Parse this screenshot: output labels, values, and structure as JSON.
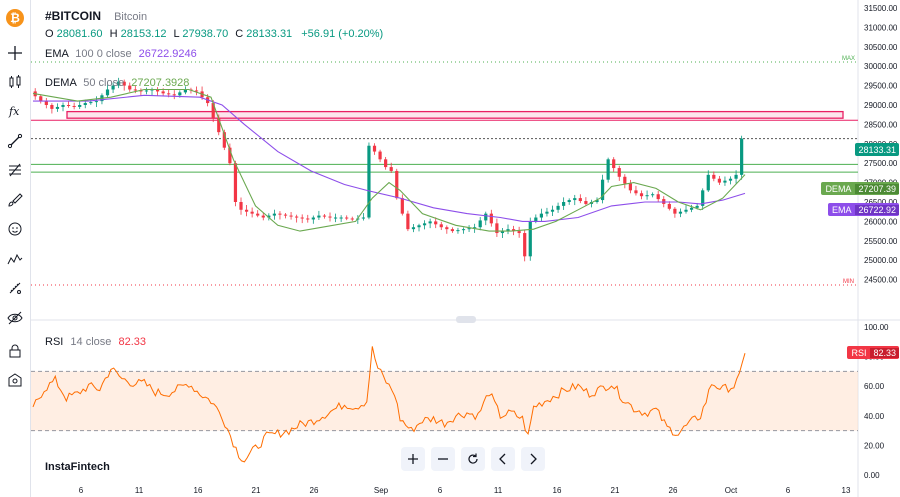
{
  "symbol": "#BITCOIN",
  "symbol_name": "Bitcoin",
  "coin_glyph": "₿",
  "ohlc": {
    "o_label": "O",
    "o": "28081.60",
    "h_label": "H",
    "h": "28153.12",
    "l_label": "L",
    "l": "27938.70",
    "c_label": "C",
    "c": "28133.31",
    "change": "+56.91 (+0.20%)"
  },
  "ema": {
    "name": "EMA",
    "params": "100 0 close",
    "value": "26722.9246",
    "tag": "26722.92",
    "color": "#8d4eea"
  },
  "dema": {
    "name": "DEMA",
    "params": "50 close",
    "value": "27207.3928",
    "tag": "27207.39",
    "color": "#6aa84f"
  },
  "rsi": {
    "name": "RSI",
    "params": "14 close",
    "value": "82.33",
    "tag_label": "RSI",
    "tag": "82.33",
    "color": "#ff6d00"
  },
  "last_price_tag": "28133.31",
  "max_label": "MAX",
  "min_label": "MIN",
  "brand": "InstaFintech",
  "colors": {
    "up": "#089981",
    "down": "#f23645",
    "zone": "#e91e63",
    "hline": "#4caf50",
    "rsi_fill": "#ffe0cc"
  },
  "toolbar_icons": [
    "bitcoin-icon",
    "crosshair-icon",
    "candles-icon",
    "fx-icon",
    "trend-line-icon",
    "fib-icon",
    "brush-icon",
    "emoji-icon",
    "pattern-icon",
    "measure-icon",
    "hide-icon",
    "lock-icon",
    "screenshot-icon"
  ],
  "chart_data": {
    "type": "candlestick",
    "symbol": "#BITCOIN",
    "x_ticks": [
      "6",
      "11",
      "16",
      "21",
      "26",
      "Sep",
      "6",
      "11",
      "16",
      "21",
      "26",
      "Oct",
      "6",
      "13"
    ],
    "y_ticks_main": [
      "31500.00",
      "31000.00",
      "30500.00",
      "30000.00",
      "29500.00",
      "29000.00",
      "28500.00",
      "28000.00",
      "27500.00",
      "27000.00",
      "26500.00",
      "26000.00",
      "25500.00",
      "25000.00",
      "24500.00"
    ],
    "y_ticks_rsi": [
      "100.00",
      "80.00",
      "60.00",
      "40.00",
      "20.00",
      "0.00"
    ],
    "ylim_main": [
      24300,
      31700
    ],
    "ylim_rsi": [
      0,
      100
    ],
    "rsi_bands": [
      70,
      30
    ],
    "horizontal_levels": [
      28133.31,
      27470,
      27270
    ],
    "zone": [
      28660,
      28830
    ],
    "price_path": [
      [
        0,
        29350
      ],
      [
        2,
        29100
      ],
      [
        4,
        28900
      ],
      [
        6,
        29000
      ],
      [
        8,
        28950
      ],
      [
        10,
        29050
      ],
      [
        12,
        29100
      ],
      [
        14,
        29400
      ],
      [
        16,
        29600
      ],
      [
        18,
        29400
      ],
      [
        20,
        29350
      ],
      [
        22,
        29400
      ],
      [
        24,
        29300
      ],
      [
        26,
        29250
      ],
      [
        28,
        29400
      ],
      [
        30,
        29350
      ],
      [
        32,
        29050
      ],
      [
        34,
        28300
      ],
      [
        36,
        27500
      ],
      [
        37,
        26500
      ],
      [
        38,
        26300
      ],
      [
        40,
        26200
      ],
      [
        42,
        26100
      ],
      [
        44,
        26200
      ],
      [
        46,
        26150
      ],
      [
        48,
        26100
      ],
      [
        50,
        26050
      ],
      [
        52,
        26150
      ],
      [
        54,
        26100
      ],
      [
        56,
        26100
      ],
      [
        58,
        26050
      ],
      [
        60,
        26100
      ],
      [
        61,
        27950
      ],
      [
        62,
        27800
      ],
      [
        64,
        27400
      ],
      [
        65,
        27300
      ],
      [
        66,
        26600
      ],
      [
        68,
        25800
      ],
      [
        70,
        25900
      ],
      [
        72,
        26000
      ],
      [
        74,
        25850
      ],
      [
        76,
        25750
      ],
      [
        78,
        25800
      ],
      [
        80,
        25850
      ],
      [
        82,
        26200
      ],
      [
        84,
        25700
      ],
      [
        86,
        25800
      ],
      [
        88,
        25700
      ],
      [
        89,
        25100
      ],
      [
        90,
        26000
      ],
      [
        92,
        26200
      ],
      [
        94,
        26300
      ],
      [
        96,
        26500
      ],
      [
        98,
        26600
      ],
      [
        100,
        26450
      ],
      [
        102,
        26550
      ],
      [
        104,
        27600
      ],
      [
        106,
        27150
      ],
      [
        108,
        26800
      ],
      [
        110,
        26650
      ],
      [
        112,
        26700
      ],
      [
        114,
        26450
      ],
      [
        116,
        26200
      ],
      [
        118,
        26300
      ],
      [
        120,
        26400
      ],
      [
        121,
        26800
      ],
      [
        122,
        27200
      ],
      [
        124,
        27000
      ],
      [
        126,
        27100
      ],
      [
        127,
        27200
      ],
      [
        128,
        28133.31
      ]
    ],
    "dema_path": [
      [
        0,
        29300
      ],
      [
        8,
        29100
      ],
      [
        14,
        29200
      ],
      [
        20,
        29400
      ],
      [
        28,
        29400
      ],
      [
        32,
        29200
      ],
      [
        36,
        27600
      ],
      [
        40,
        26400
      ],
      [
        44,
        25900
      ],
      [
        48,
        25750
      ],
      [
        52,
        25850
      ],
      [
        58,
        26000
      ],
      [
        61,
        26600
      ],
      [
        64,
        27000
      ],
      [
        66,
        26800
      ],
      [
        70,
        26200
      ],
      [
        76,
        25900
      ],
      [
        82,
        25750
      ],
      [
        86,
        25750
      ],
      [
        90,
        25800
      ],
      [
        94,
        26000
      ],
      [
        98,
        26300
      ],
      [
        102,
        26600
      ],
      [
        104,
        26900
      ],
      [
        108,
        27000
      ],
      [
        112,
        26850
      ],
      [
        116,
        26500
      ],
      [
        120,
        26300
      ],
      [
        124,
        26600
      ],
      [
        128,
        27207.39
      ]
    ],
    "ema_path": [
      [
        0,
        29100
      ],
      [
        10,
        29100
      ],
      [
        20,
        29250
      ],
      [
        30,
        29200
      ],
      [
        34,
        29000
      ],
      [
        38,
        28500
      ],
      [
        44,
        27800
      ],
      [
        50,
        27300
      ],
      [
        56,
        26950
      ],
      [
        60,
        26800
      ],
      [
        66,
        26600
      ],
      [
        72,
        26350
      ],
      [
        78,
        26200
      ],
      [
        84,
        26100
      ],
      [
        88,
        26000
      ],
      [
        92,
        26000
      ],
      [
        98,
        26100
      ],
      [
        104,
        26400
      ],
      [
        110,
        26500
      ],
      [
        116,
        26500
      ],
      [
        120,
        26450
      ],
      [
        124,
        26550
      ],
      [
        128,
        26722.92
      ]
    ],
    "rsi_path": [
      [
        0,
        46
      ],
      [
        2,
        58
      ],
      [
        4,
        64
      ],
      [
        6,
        52
      ],
      [
        8,
        55
      ],
      [
        10,
        60
      ],
      [
        12,
        58
      ],
      [
        14,
        72
      ],
      [
        16,
        65
      ],
      [
        18,
        62
      ],
      [
        20,
        62
      ],
      [
        22,
        56
      ],
      [
        24,
        55
      ],
      [
        26,
        58
      ],
      [
        28,
        62
      ],
      [
        30,
        55
      ],
      [
        32,
        50
      ],
      [
        34,
        40
      ],
      [
        36,
        22
      ],
      [
        37,
        14
      ],
      [
        38,
        10
      ],
      [
        40,
        18
      ],
      [
        42,
        26
      ],
      [
        44,
        28
      ],
      [
        46,
        30
      ],
      [
        48,
        34
      ],
      [
        50,
        36
      ],
      [
        52,
        40
      ],
      [
        54,
        44
      ],
      [
        56,
        48
      ],
      [
        58,
        46
      ],
      [
        60,
        50
      ],
      [
        61,
        85
      ],
      [
        62,
        72
      ],
      [
        64,
        60
      ],
      [
        65,
        55
      ],
      [
        66,
        38
      ],
      [
        68,
        30
      ],
      [
        70,
        37
      ],
      [
        72,
        38
      ],
      [
        74,
        35
      ],
      [
        76,
        40
      ],
      [
        78,
        42
      ],
      [
        80,
        40
      ],
      [
        82,
        56
      ],
      [
        84,
        40
      ],
      [
        86,
        42
      ],
      [
        88,
        38
      ],
      [
        89,
        26
      ],
      [
        90,
        46
      ],
      [
        92,
        50
      ],
      [
        94,
        54
      ],
      [
        96,
        58
      ],
      [
        98,
        60
      ],
      [
        100,
        55
      ],
      [
        102,
        58
      ],
      [
        104,
        62
      ],
      [
        106,
        52
      ],
      [
        108,
        45
      ],
      [
        110,
        42
      ],
      [
        112,
        44
      ],
      [
        114,
        32
      ],
      [
        116,
        28
      ],
      [
        118,
        35
      ],
      [
        120,
        40
      ],
      [
        121,
        50
      ],
      [
        122,
        62
      ],
      [
        124,
        58
      ],
      [
        126,
        60
      ],
      [
        127,
        66
      ],
      [
        128,
        82.33
      ]
    ]
  }
}
